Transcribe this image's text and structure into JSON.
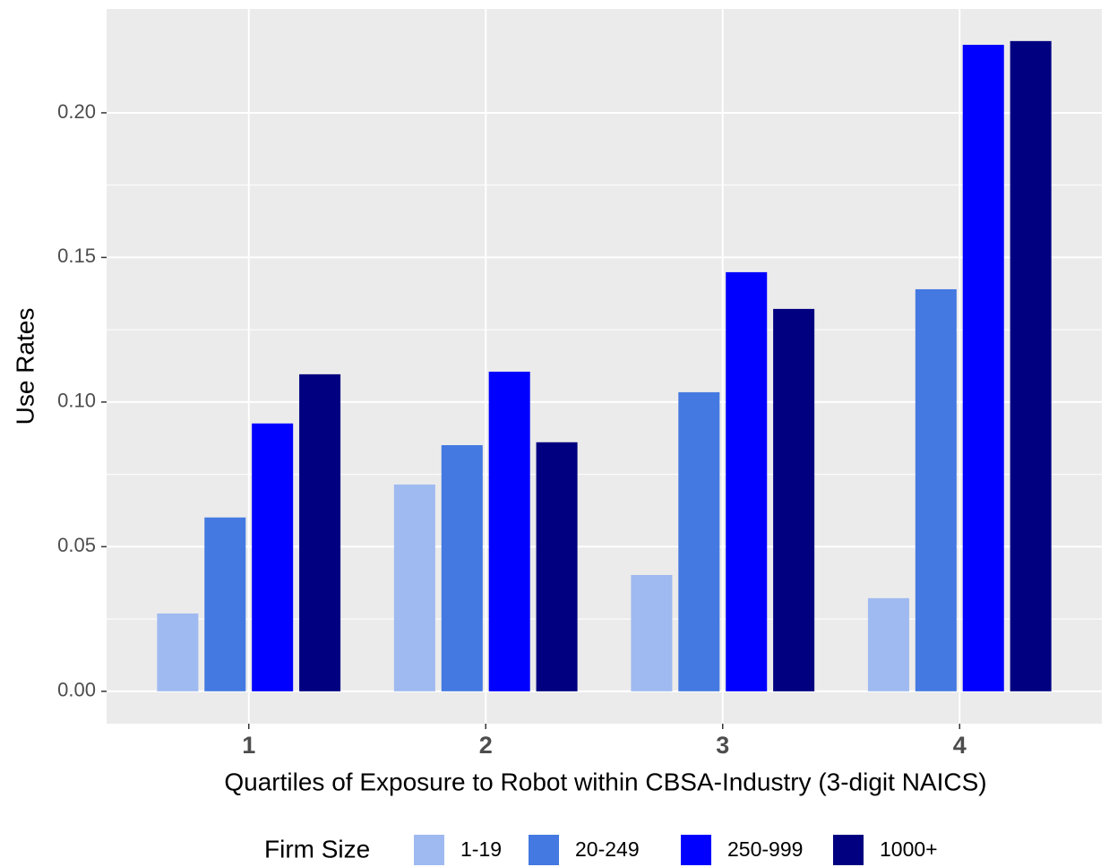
{
  "chart_data": {
    "type": "bar",
    "x_label": "Quartiles of Exposure to Robot within CBSA-Industry (3-digit NAICS)",
    "y_label": "Use Rates",
    "legend_title": "Firm Size",
    "legend_position": "bottom",
    "categories": [
      "1",
      "2",
      "3",
      "4"
    ],
    "series": [
      {
        "name": "1-19",
        "color": "#9fbaf0",
        "values": [
          0.0269,
          0.0715,
          0.0402,
          0.0322
        ]
      },
      {
        "name": "20-249",
        "color": "#4479e1",
        "values": [
          0.0601,
          0.0851,
          0.1034,
          0.139
        ]
      },
      {
        "name": "250-999",
        "color": "#0000ff",
        "values": [
          0.0926,
          0.1105,
          0.1449,
          0.2235
        ]
      },
      {
        "name": "1000+",
        "color": "#000080",
        "values": [
          0.1096,
          0.0861,
          0.1322,
          0.2248
        ]
      }
    ],
    "ylim": [
      -0.0112,
      0.2359
    ],
    "yticks": [
      {
        "value": 0,
        "label": "0.00"
      },
      {
        "value": 0.05,
        "label": "0.05"
      },
      {
        "value": 0.1,
        "label": "0.10"
      },
      {
        "value": 0.15,
        "label": "0.15"
      },
      {
        "value": 0.2,
        "label": "0.20"
      }
    ],
    "grid": true
  }
}
